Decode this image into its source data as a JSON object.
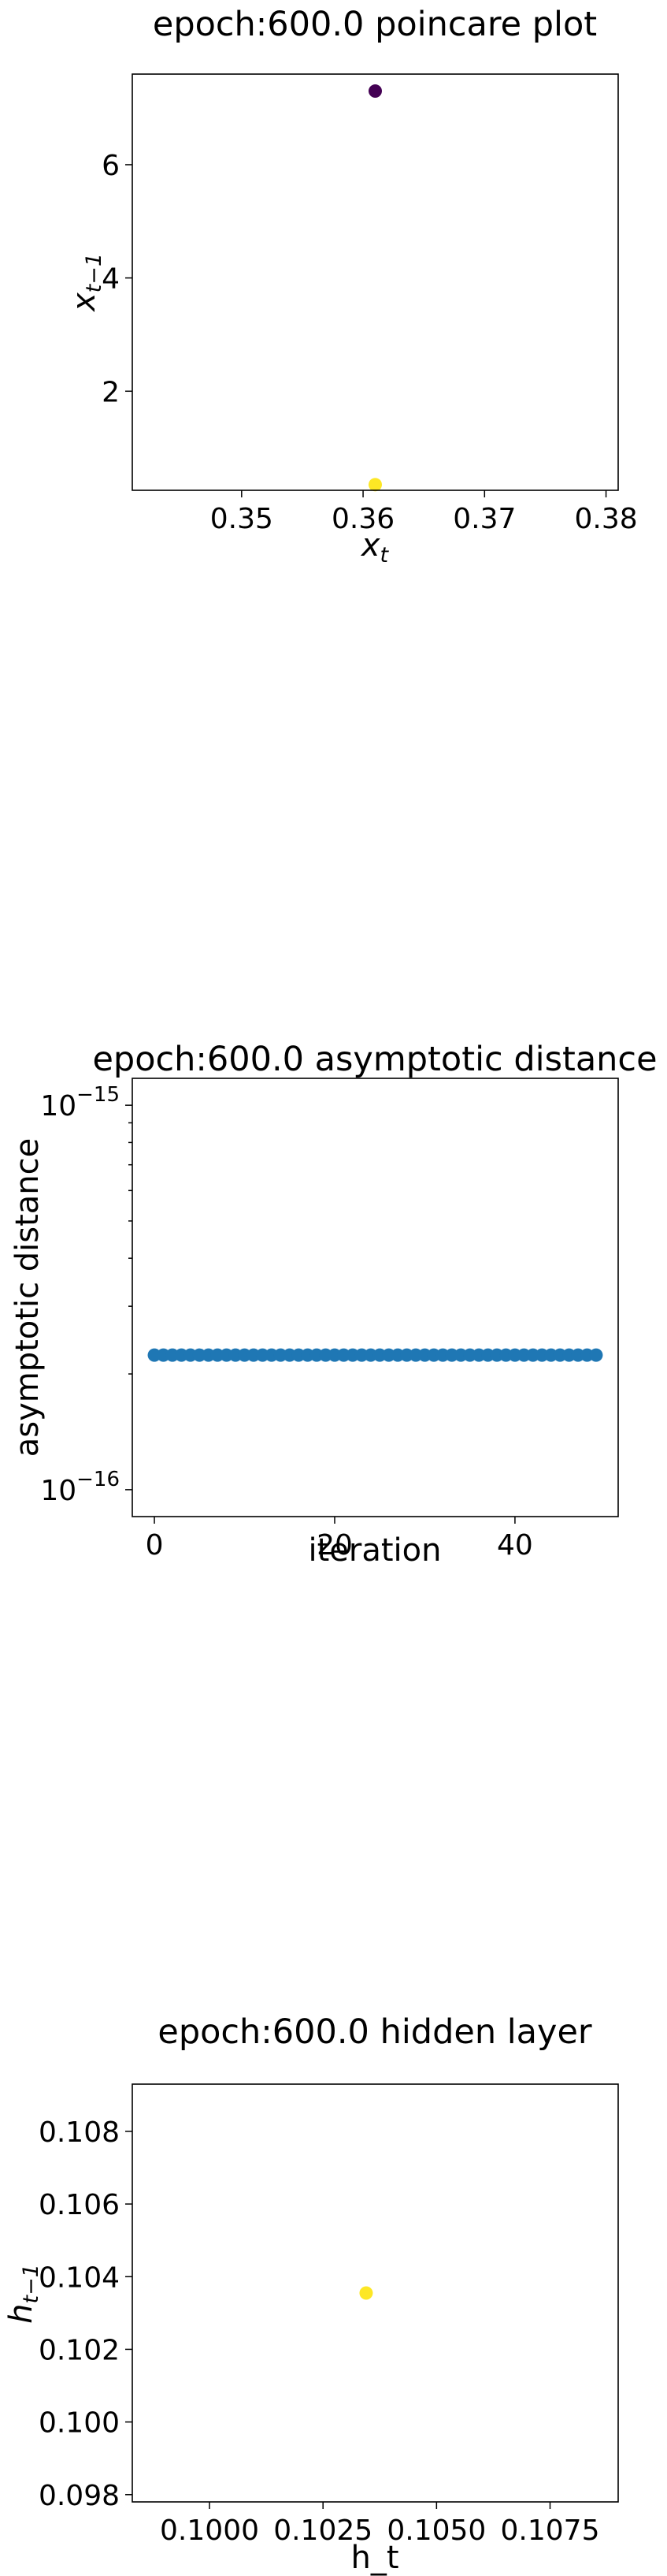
{
  "chart_data": [
    {
      "type": "scatter",
      "title": "epoch:600.0 poincare plot",
      "xlabel_main": "x",
      "xlabel_sub": "t",
      "ylabel_main": "x",
      "ylabel_sub": "t−1",
      "xlim": [
        0.341,
        0.381
      ],
      "ylim": [
        0.25,
        7.6
      ],
      "x_ticks": [
        0.35,
        0.36,
        0.37,
        0.38
      ],
      "x_tick_labels": [
        "0.35",
        "0.36",
        "0.37",
        "0.38"
      ],
      "y_ticks": [
        2,
        4,
        6
      ],
      "y_tick_labels": [
        "2",
        "4",
        "6"
      ],
      "points": [
        {
          "x": 0.361,
          "y": 7.3,
          "color": "#440154"
        },
        {
          "x": 0.361,
          "y": 0.35,
          "color": "#fde725"
        }
      ],
      "grid": false
    },
    {
      "type": "scatter",
      "title": "epoch:600.0 asymptotic distance",
      "xlabel": "iteration",
      "ylabel": "asymptotic distance",
      "log_y": true,
      "xlim": [
        -2.45,
        51.45
      ],
      "ylim_log10": [
        -16.07,
        -14.93
      ],
      "x_ticks": [
        0,
        20,
        40
      ],
      "x_tick_labels": [
        "0",
        "20",
        "40"
      ],
      "y_ticks_log10": [
        -16,
        -15
      ],
      "y_tick_labels": [
        {
          "base": "10",
          "exp": "−16"
        },
        {
          "base": "10",
          "exp": "−15"
        }
      ],
      "series_x": [
        0,
        1,
        2,
        3,
        4,
        5,
        6,
        7,
        8,
        9,
        10,
        11,
        12,
        13,
        14,
        15,
        16,
        17,
        18,
        19,
        20,
        21,
        22,
        23,
        24,
        25,
        26,
        27,
        28,
        29,
        30,
        31,
        32,
        33,
        34,
        35,
        36,
        37,
        38,
        39,
        40,
        41,
        42,
        43,
        44,
        45,
        46,
        47,
        48,
        49
      ],
      "series_y_log10": -15.65,
      "color": "#1f77b4",
      "grid": false
    },
    {
      "type": "scatter",
      "title": "epoch:600.0 hidden layer",
      "xlabel": "h_t",
      "ylabel_main": "h",
      "ylabel_sub": "t−1",
      "xlim": [
        0.0983,
        0.109
      ],
      "ylim": [
        0.0978,
        0.1093
      ],
      "x_ticks": [
        0.1,
        0.1025,
        0.105,
        0.1075
      ],
      "x_tick_labels": [
        "0.1000",
        "0.1025",
        "0.1050",
        "0.1075"
      ],
      "y_ticks": [
        0.098,
        0.1,
        0.102,
        0.104,
        0.106,
        0.108
      ],
      "y_tick_labels": [
        "0.098",
        "0.100",
        "0.102",
        "0.104",
        "0.106",
        "0.108"
      ],
      "points": [
        {
          "x": 0.10345,
          "y": 0.10355,
          "color": "#fde725"
        }
      ],
      "grid": false
    }
  ]
}
